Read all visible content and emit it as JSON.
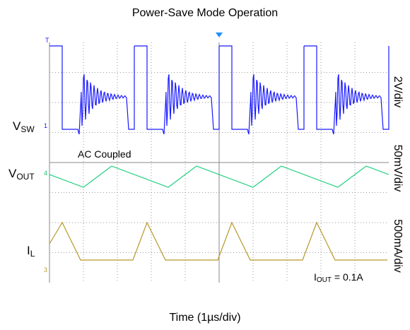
{
  "title": "Power-Save Mode Operation",
  "channels": [
    {
      "name": "V",
      "sub": "SW",
      "scale": "2V/div",
      "marker": "1"
    },
    {
      "name": "V",
      "sub": "OUT",
      "scale": "50mV/div",
      "marker": "4"
    },
    {
      "name": "I",
      "sub": "L",
      "scale": "500mA/div",
      "marker": "3"
    }
  ],
  "trigger_marker": "T",
  "annotation": "AC Coupled",
  "load": {
    "name": "I",
    "sub": "OUT",
    "text": " = 0.1A"
  },
  "x_label": "Time (1µs/div)"
}
